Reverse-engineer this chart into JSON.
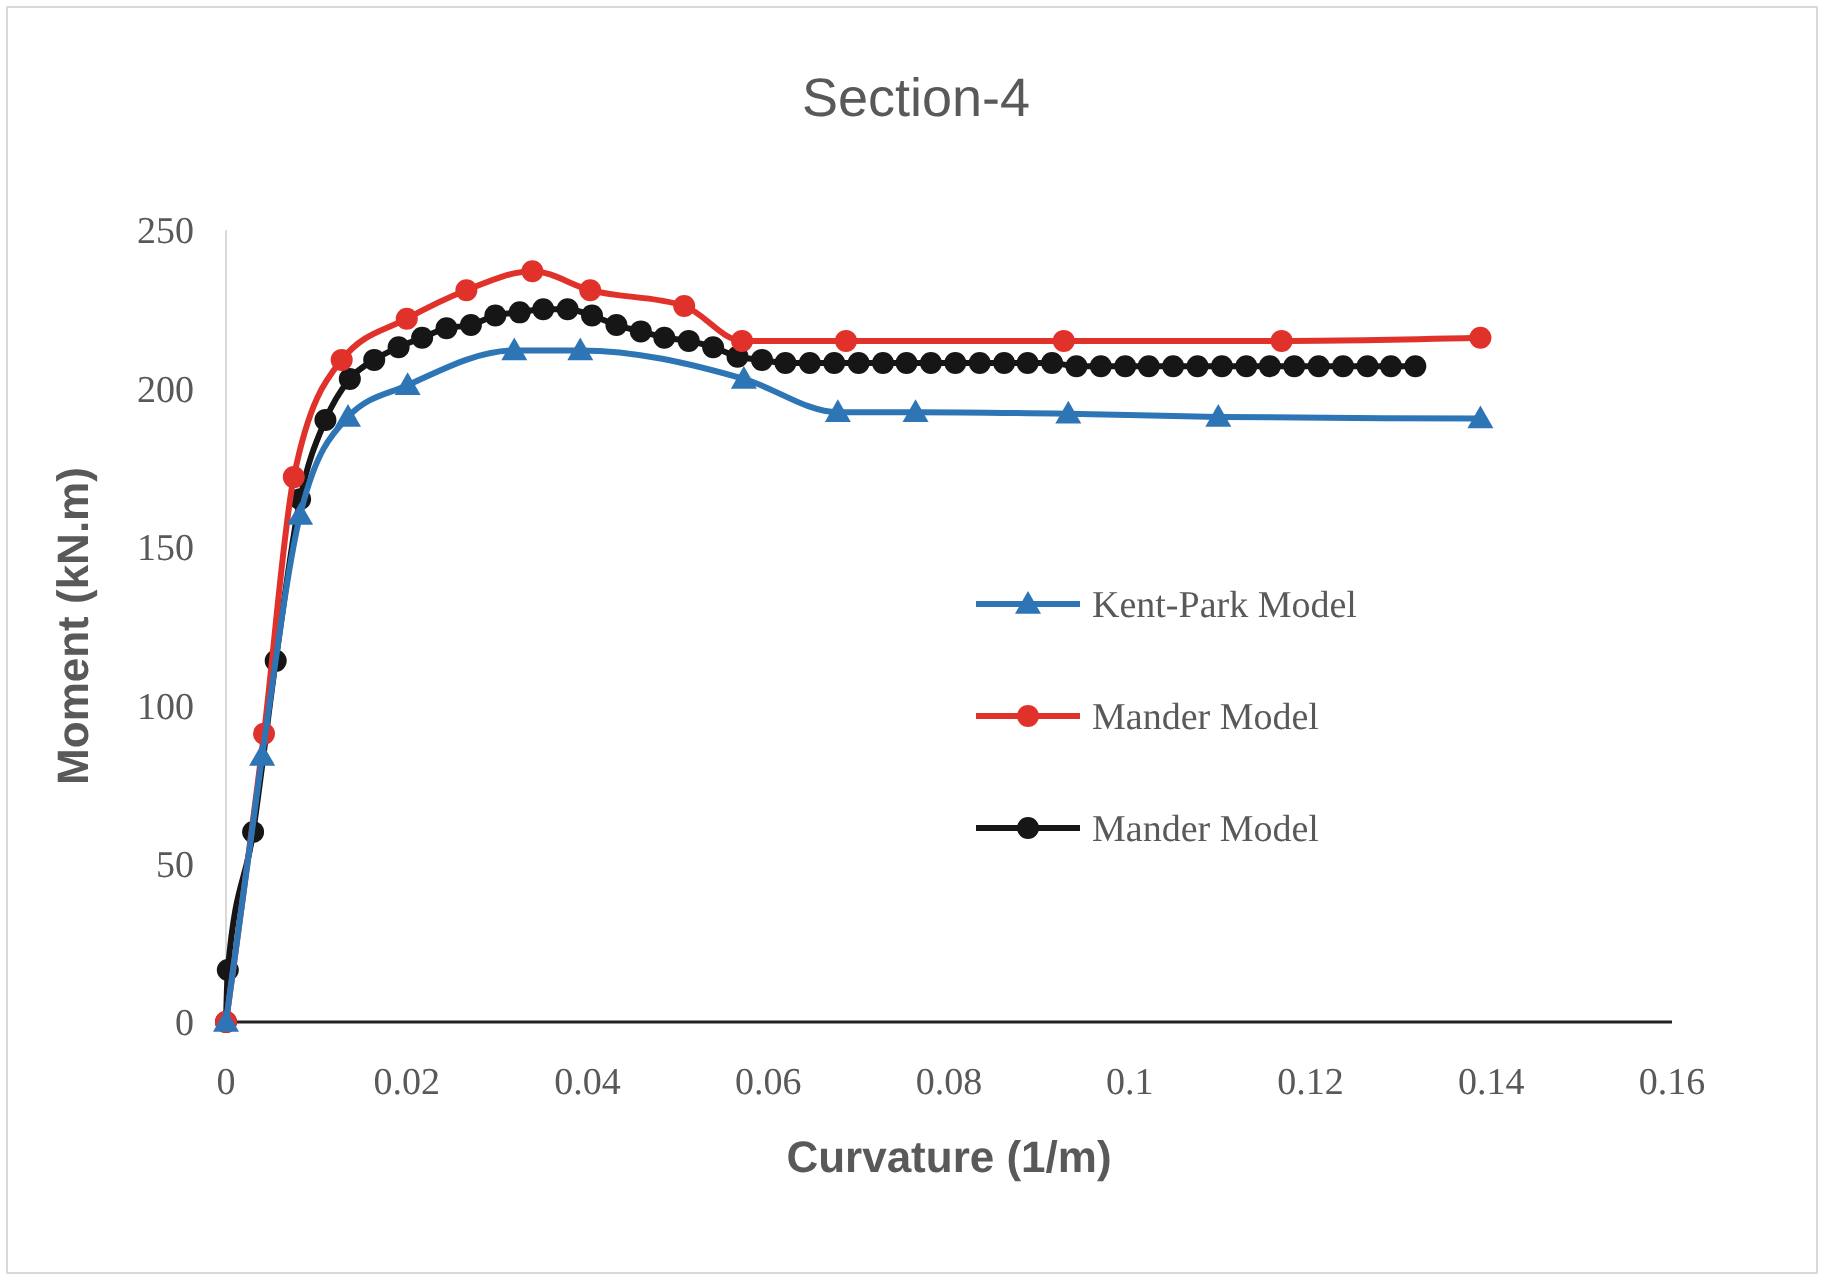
{
  "chart_data": {
    "type": "line",
    "title": "Section-4",
    "xlabel": "Curvature (1/m)",
    "ylabel": "Moment (kN.m)",
    "xlim": [
      0,
      0.16
    ],
    "xticks": [
      0,
      0.02,
      0.04,
      0.06,
      0.08,
      0.1,
      0.12,
      0.14,
      0.16
    ],
    "ylim": [
      0,
      250
    ],
    "yticks": [
      0,
      50,
      100,
      150,
      200,
      250
    ],
    "grid": false,
    "legend": "right",
    "line_style": "solid",
    "series": [
      {
        "name": "Kent-Park Model",
        "color": "#2e75b6",
        "marker": "triangle",
        "x": [
          0,
          0.004,
          0.0082,
          0.0135,
          0.0201,
          0.0319,
          0.0392,
          0.0573,
          0.0677,
          0.0763,
          0.0932,
          0.1098,
          0.1388
        ],
        "values": [
          0,
          84,
          160,
          191,
          201,
          212,
          212,
          203,
          192.5,
          192.5,
          192,
          191,
          190.5
        ]
      },
      {
        "name": "Mander Model",
        "color": "#e0322a",
        "marker": "circle",
        "x": [
          0,
          0.0042,
          0.0075,
          0.0128,
          0.02,
          0.0266,
          0.0339,
          0.0403,
          0.0507,
          0.0571,
          0.0686,
          0.0927,
          0.1168,
          0.1388
        ],
        "values": [
          0,
          91,
          172,
          209,
          222,
          231,
          237,
          231,
          226,
          215,
          215,
          215,
          215,
          216
        ]
      },
      {
        "name": "Mander Model",
        "color": "#161616",
        "marker": "circle",
        "x": [
          0,
          0.0002,
          0.003,
          0.0055,
          0.0082,
          0.011,
          0.0137,
          0.0164,
          0.0191,
          0.0217,
          0.0244,
          0.0271,
          0.0298,
          0.0325,
          0.0351,
          0.0378,
          0.0405,
          0.0432,
          0.0459,
          0.0485,
          0.0512,
          0.0539,
          0.0566,
          0.0593,
          0.0619,
          0.0646,
          0.0673,
          0.07,
          0.0727,
          0.0753,
          0.078,
          0.0807,
          0.0834,
          0.0861,
          0.0887,
          0.0914,
          0.0941,
          0.0968,
          0.0995,
          0.1021,
          0.1048,
          0.1075,
          0.1102,
          0.1129,
          0.1155,
          0.1182,
          0.1209,
          0.1236,
          0.1263,
          0.1289,
          0.1316
        ],
        "values": [
          0,
          16.4,
          60,
          114,
          165,
          190,
          203,
          209,
          213,
          216,
          219,
          220,
          223,
          224,
          225,
          225,
          223,
          220,
          218,
          216,
          215,
          213,
          210,
          209,
          208,
          208,
          208,
          208,
          208,
          208,
          208,
          208,
          208,
          208,
          208,
          208,
          207,
          207,
          207,
          207,
          207,
          207,
          207,
          207,
          207,
          207,
          207,
          207,
          207,
          207,
          207
        ]
      }
    ]
  }
}
